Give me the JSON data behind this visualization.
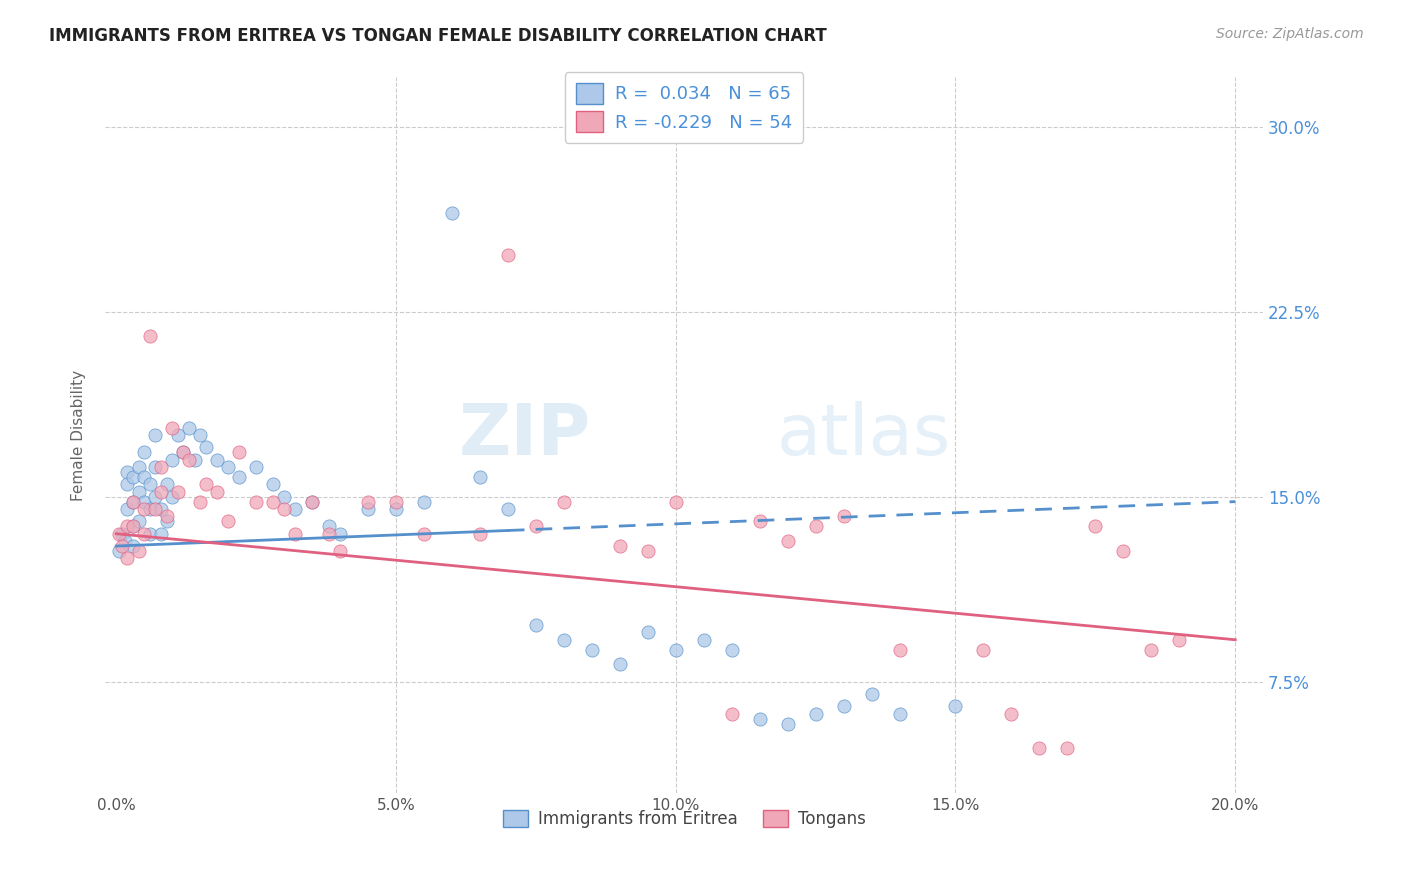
{
  "title": "IMMIGRANTS FROM ERITREA VS TONGAN FEMALE DISABILITY CORRELATION CHART",
  "source": "Source: ZipAtlas.com",
  "ylabel": "Female Disability",
  "ytick_values": [
    0.075,
    0.15,
    0.225,
    0.3
  ],
  "xtick_values": [
    0.0,
    0.05,
    0.1,
    0.15,
    0.2
  ],
  "xlim": [
    -0.002,
    0.205
  ],
  "ylim": [
    0.03,
    0.32
  ],
  "legend_eritrea": "Immigrants from Eritrea",
  "legend_tongan": "Tongans",
  "R_eritrea": 0.034,
  "N_eritrea": 65,
  "R_tongan": -0.229,
  "N_tongan": 54,
  "color_eritrea": "#adc8e8",
  "color_tongan": "#f0a8b8",
  "color_eritrea_line": "#5590cc",
  "color_tongan_line": "#e06080",
  "color_ytick": "#4a90d9",
  "eritrea_x": [
    0.0005,
    0.001,
    0.0015,
    0.002,
    0.002,
    0.002,
    0.003,
    0.003,
    0.003,
    0.003,
    0.004,
    0.004,
    0.004,
    0.005,
    0.005,
    0.005,
    0.006,
    0.006,
    0.006,
    0.007,
    0.007,
    0.007,
    0.008,
    0.008,
    0.009,
    0.009,
    0.01,
    0.01,
    0.011,
    0.012,
    0.013,
    0.014,
    0.015,
    0.016,
    0.018,
    0.02,
    0.022,
    0.025,
    0.028,
    0.03,
    0.032,
    0.035,
    0.038,
    0.04,
    0.045,
    0.05,
    0.055,
    0.06,
    0.065,
    0.07,
    0.075,
    0.08,
    0.085,
    0.09,
    0.095,
    0.1,
    0.105,
    0.11,
    0.115,
    0.12,
    0.125,
    0.13,
    0.135,
    0.14,
    0.15
  ],
  "eritrea_y": [
    0.128,
    0.135,
    0.132,
    0.16,
    0.145,
    0.155,
    0.158,
    0.148,
    0.138,
    0.13,
    0.162,
    0.152,
    0.14,
    0.168,
    0.158,
    0.148,
    0.155,
    0.145,
    0.135,
    0.175,
    0.162,
    0.15,
    0.145,
    0.135,
    0.155,
    0.14,
    0.165,
    0.15,
    0.175,
    0.168,
    0.178,
    0.165,
    0.175,
    0.17,
    0.165,
    0.162,
    0.158,
    0.162,
    0.155,
    0.15,
    0.145,
    0.148,
    0.138,
    0.135,
    0.145,
    0.145,
    0.148,
    0.265,
    0.158,
    0.145,
    0.098,
    0.092,
    0.088,
    0.082,
    0.095,
    0.088,
    0.092,
    0.088,
    0.06,
    0.058,
    0.062,
    0.065,
    0.07,
    0.062,
    0.065
  ],
  "tongan_x": [
    0.0005,
    0.001,
    0.002,
    0.002,
    0.003,
    0.003,
    0.004,
    0.005,
    0.005,
    0.006,
    0.007,
    0.008,
    0.008,
    0.009,
    0.01,
    0.011,
    0.012,
    0.013,
    0.015,
    0.016,
    0.018,
    0.02,
    0.022,
    0.025,
    0.028,
    0.03,
    0.032,
    0.035,
    0.038,
    0.04,
    0.045,
    0.05,
    0.055,
    0.065,
    0.07,
    0.075,
    0.08,
    0.09,
    0.095,
    0.1,
    0.11,
    0.115,
    0.12,
    0.125,
    0.13,
    0.14,
    0.155,
    0.16,
    0.165,
    0.17,
    0.175,
    0.18,
    0.185,
    0.19
  ],
  "tongan_y": [
    0.135,
    0.13,
    0.138,
    0.125,
    0.148,
    0.138,
    0.128,
    0.145,
    0.135,
    0.215,
    0.145,
    0.162,
    0.152,
    0.142,
    0.178,
    0.152,
    0.168,
    0.165,
    0.148,
    0.155,
    0.152,
    0.14,
    0.168,
    0.148,
    0.148,
    0.145,
    0.135,
    0.148,
    0.135,
    0.128,
    0.148,
    0.148,
    0.135,
    0.135,
    0.248,
    0.138,
    0.148,
    0.13,
    0.128,
    0.148,
    0.062,
    0.14,
    0.132,
    0.138,
    0.142,
    0.088,
    0.088,
    0.062,
    0.048,
    0.048,
    0.138,
    0.128,
    0.088,
    0.092
  ],
  "eritrea_trend_x": [
    0.0,
    0.2
  ],
  "eritrea_trend_y": [
    0.13,
    0.148
  ],
  "tongan_trend_x": [
    0.0,
    0.2
  ],
  "tongan_trend_y": [
    0.135,
    0.092
  ]
}
